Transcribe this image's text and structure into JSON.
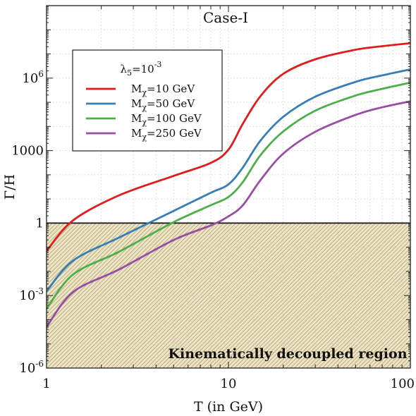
{
  "chart_data": {
    "type": "line",
    "title": "Case-I",
    "xlabel": "T (in GeV)",
    "ylabel": "Γ/H",
    "xscale": "log",
    "yscale": "log",
    "xlim": [
      1,
      100
    ],
    "ylim": [
      1e-06,
      1000000000.0
    ],
    "grid": true,
    "legend_placement": "upper-left",
    "legend_title": "λ5=10^-3",
    "x_ticks": [
      {
        "value": 1,
        "label": "1"
      },
      {
        "value": 10,
        "label": "10"
      },
      {
        "value": 100,
        "label": "100"
      }
    ],
    "y_ticks": [
      {
        "value": 1e-06,
        "base": "10",
        "exp": "-6"
      },
      {
        "value": 0.001,
        "base": "10",
        "exp": "-3"
      },
      {
        "value": 1,
        "base": "1",
        "exp": ""
      },
      {
        "value": 1000,
        "base": "1000",
        "exp": ""
      },
      {
        "value": 1000000.0,
        "base": "10",
        "exp": "6"
      }
    ],
    "reference_line": {
      "y": 1
    },
    "shaded_region": {
      "label": "Kinematically decoupled region",
      "y_from": 1e-06,
      "y_to": 1
    },
    "x": [
      1,
      1.4,
      2.5,
      5,
      8,
      10,
      12,
      15,
      20,
      30,
      50,
      70,
      100
    ],
    "series": [
      {
        "name": "Mχ=10 GeV",
        "color": "#e41a1c",
        "values": [
          0.07,
          1.3,
          14,
          90,
          310,
          1100,
          13000,
          180000.0,
          1500000.0,
          6000000.0,
          15000000.0,
          21000000.0,
          28000000.0
        ]
      },
      {
        "name": "Mχ=50 GeV",
        "color": "#377eb8",
        "values": [
          0.0015,
          0.028,
          0.25,
          3.2,
          18,
          40,
          200,
          2600,
          25000,
          170000.0,
          700000.0,
          1300000.0,
          2300000.0
        ]
      },
      {
        "name": "Mχ=100 GeV",
        "color": "#4daf4a",
        "values": [
          0.00028,
          0.0075,
          0.065,
          1.1,
          5.5,
          12,
          50,
          650,
          6200,
          45000,
          190000.0,
          360000.0,
          650000.0
        ]
      },
      {
        "name": "Mχ=250 GeV",
        "color": "#984ea3",
        "values": [
          5e-05,
          0.0014,
          0.012,
          0.2,
          0.8,
          1.9,
          5.5,
          60,
          750,
          6000,
          30000,
          62000,
          110000.0
        ]
      }
    ]
  }
}
